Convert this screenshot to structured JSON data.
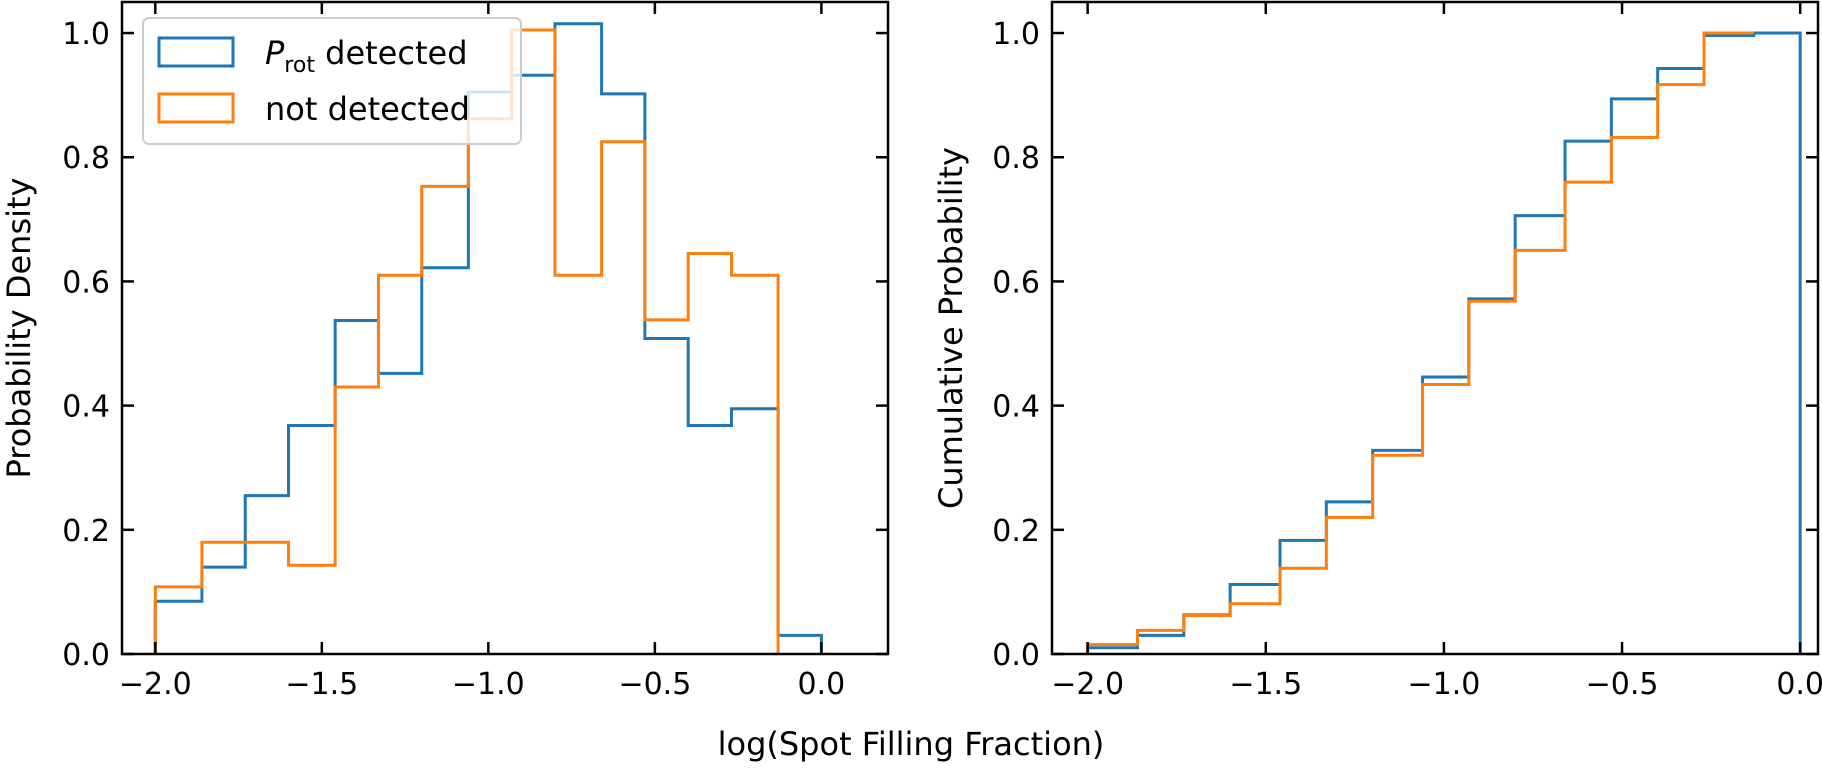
{
  "figure": {
    "shared_xlabel": "log(Spot Filling Fraction)"
  },
  "colors": {
    "detected": "#1f77b4",
    "not_detected": "#ff7f0e",
    "axes": "#000000",
    "legend_edge": "#cccccc"
  },
  "legend": {
    "placement": "upper-left of left panel",
    "entries": [
      {
        "series": "detected",
        "label_main": "P",
        "label_sub": "rot",
        "label_rest": " detected"
      },
      {
        "series": "not_detected",
        "label": "not detected"
      }
    ]
  },
  "chart_data": [
    {
      "type": "histogram-step",
      "title": "",
      "xlabel": "log(Spot Filling Fraction)",
      "ylabel": "Probability Density",
      "xlim": [
        -2.1,
        0.2
      ],
      "ylim": [
        0,
        1.05
      ],
      "xticks": [
        -2.0,
        -1.5,
        -1.0,
        -0.5,
        0.0
      ],
      "xtick_labels": [
        "−2.0",
        "−1.5",
        "−1.0",
        "−0.5",
        "0.0"
      ],
      "yticks": [
        0.0,
        0.2,
        0.4,
        0.6,
        0.8,
        1.0
      ],
      "ytick_labels": [
        "0.0",
        "0.2",
        "0.4",
        "0.6",
        "0.8",
        "1.0"
      ],
      "grid": false,
      "series": [
        {
          "name": "detected",
          "display_name": "Prot detected",
          "edges": [
            -2.0,
            -1.86,
            -1.73,
            -1.6,
            -1.46,
            -1.33,
            -1.2,
            -1.06,
            -0.93,
            -0.8,
            -0.66,
            -0.53,
            -0.4,
            -0.27,
            -0.13,
            0.0
          ],
          "values": [
            0.085,
            0.14,
            0.255,
            0.368,
            0.537,
            0.452,
            0.622,
            0.905,
            0.932,
            1.015,
            0.902,
            0.508,
            0.368,
            0.395,
            0.03
          ]
        },
        {
          "name": "not_detected",
          "display_name": "not detected",
          "edges": [
            -2.0,
            -1.86,
            -1.73,
            -1.6,
            -1.46,
            -1.33,
            -1.2,
            -1.06,
            -0.93,
            -0.8,
            -0.66,
            -0.53,
            -0.4,
            -0.27,
            -0.13
          ],
          "values": [
            0.108,
            0.18,
            0.18,
            0.143,
            0.43,
            0.61,
            0.753,
            0.862,
            1.005,
            0.61,
            0.825,
            0.538,
            0.645,
            0.61
          ]
        }
      ]
    },
    {
      "type": "cumulative-step",
      "title": "",
      "xlabel": "log(Spot Filling Fraction)",
      "ylabel": "Cumulative Probability",
      "xlim": [
        -2.1,
        0.05
      ],
      "ylim": [
        0,
        1.05
      ],
      "xticks": [
        -2.0,
        -1.5,
        -1.0,
        -0.5,
        0.0
      ],
      "xtick_labels": [
        "−2.0",
        "−1.5",
        "−1.0",
        "−0.5",
        "0.0"
      ],
      "yticks": [
        0.0,
        0.2,
        0.4,
        0.6,
        0.8,
        1.0
      ],
      "ytick_labels": [
        "0.0",
        "0.2",
        "0.4",
        "0.6",
        "0.8",
        "1.0"
      ],
      "grid": false,
      "series": [
        {
          "name": "detected",
          "display_name": "Prot detected",
          "edges": [
            -2.0,
            -1.86,
            -1.73,
            -1.6,
            -1.46,
            -1.33,
            -1.2,
            -1.06,
            -0.93,
            -0.8,
            -0.66,
            -0.53,
            -0.4,
            -0.27,
            -0.13,
            0.0
          ],
          "values": [
            0.01,
            0.03,
            0.063,
            0.112,
            0.183,
            0.245,
            0.328,
            0.446,
            0.572,
            0.706,
            0.826,
            0.894,
            0.943,
            0.996,
            1.0
          ],
          "drop_to_zero_at_end": true
        },
        {
          "name": "not_detected",
          "display_name": "not detected",
          "edges": [
            -2.0,
            -1.86,
            -1.73,
            -1.6,
            -1.46,
            -1.33,
            -1.2,
            -1.06,
            -0.93,
            -0.8,
            -0.66,
            -0.53,
            -0.4,
            -0.27,
            -0.13
          ],
          "values": [
            0.015,
            0.038,
            0.062,
            0.081,
            0.138,
            0.22,
            0.32,
            0.434,
            0.568,
            0.65,
            0.76,
            0.832,
            0.917,
            1.0
          ],
          "drop_to_zero_at_end": false
        }
      ]
    }
  ]
}
